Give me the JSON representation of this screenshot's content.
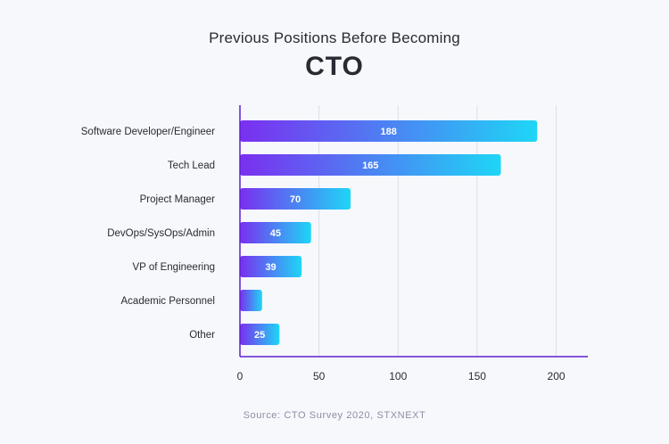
{
  "chart_data": {
    "type": "bar",
    "orientation": "horizontal",
    "subtitle": "Previous Positions Before Becoming",
    "title": "CTO",
    "categories": [
      "Software Developer/Engineer",
      "Tech Lead",
      "Project Manager",
      "DevOps/SysOps/Admin",
      "VP of Engineering",
      "Academic Personnel",
      "Other"
    ],
    "values": [
      188,
      165,
      70,
      45,
      39,
      14,
      25
    ],
    "value_labels": [
      "188",
      "165",
      "70",
      "45",
      "39",
      "",
      "25"
    ],
    "xlim": [
      0,
      220
    ],
    "xticks": [
      0,
      50,
      100,
      150,
      200
    ],
    "grid": true,
    "bar_gradient": [
      "#7a2ff0",
      "#1ed6f6"
    ],
    "axis_color": "#5b21d1",
    "grid_color": "#dcdfe8"
  },
  "source": "Source: CTO Survey 2020, STXNEXT"
}
